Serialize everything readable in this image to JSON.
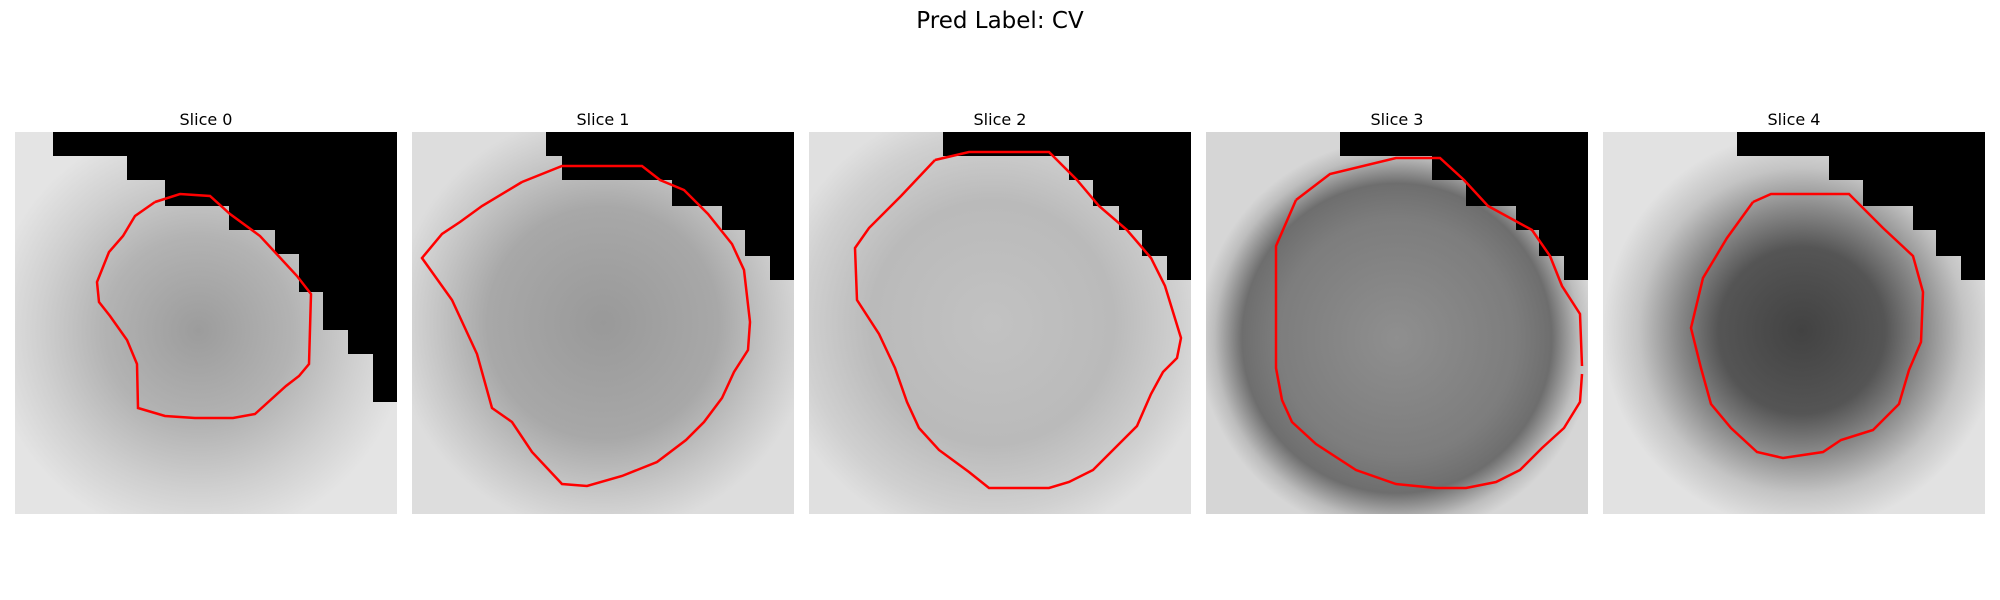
{
  "figure": {
    "title": "Pred Label: CV"
  },
  "panels": [
    {
      "title": "Slice 0"
    },
    {
      "title": "Slice 1"
    },
    {
      "title": "Slice 2"
    },
    {
      "title": "Slice 3"
    },
    {
      "title": "Slice 4"
    }
  ],
  "colors": {
    "contour": "#ff0000",
    "mask": "#000000",
    "background": "#ffffff"
  }
}
